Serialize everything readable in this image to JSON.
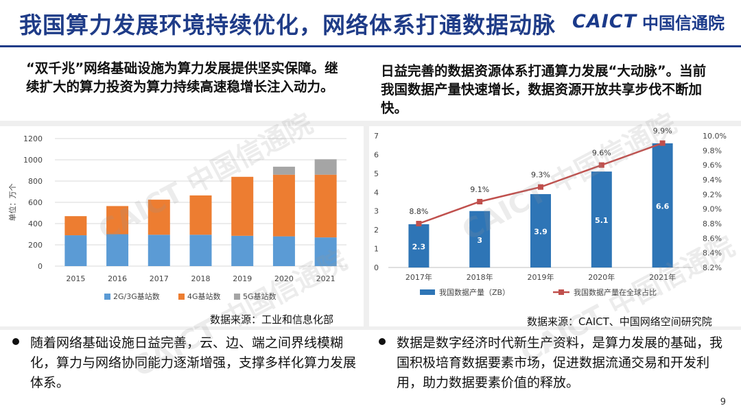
{
  "header": {
    "title": "我国算力发展环境持续优化，网络体系打通数据动脉",
    "logo_mark": "CAICT",
    "logo_text": "中国信通院"
  },
  "left": {
    "subtitle": "“双千兆”网络基础设施为算力发展提供坚实保障。继续扩大的算力投资为算力持续高速稳增长注入动力。",
    "source": "数据来源：工业和信息化部",
    "bullet": "随着网络基础设施日益完善，云、边、端之间界线模糊化，算力与网络协同能力逐渐增强，支撑多样化算力发展体系。"
  },
  "right": {
    "subtitle": "日益完善的数据资源体系打通算力发展“大动脉”。当前我国数据产量快速增长，数据资源开放共享步伐不断加快。",
    "source": "数据来源：CAICT、中国网络空间研究院",
    "bullet": "数据是数字经济时代新生产资料，是算力发展的基础，我国积极培育数据要素市场，促进数据流通交易和开发利用，助力数据要素价值的释放。"
  },
  "watermark": "CAICT 中国信通院",
  "page_number": "9",
  "chart_data": [
    {
      "type": "bar",
      "stacked": true,
      "categories": [
        "2015",
        "2016",
        "2017",
        "2018",
        "2019",
        "2020",
        "2021"
      ],
      "series": [
        {
          "name": "2G/3G基站数",
          "color": "#5b9bd5",
          "values": [
            290,
            300,
            295,
            295,
            285,
            280,
            270
          ]
        },
        {
          "name": "4G基站数",
          "color": "#ed7d31",
          "values": [
            180,
            265,
            330,
            370,
            555,
            580,
            590
          ]
        },
        {
          "name": "5G基站数",
          "color": "#a5a5a5",
          "values": [
            0,
            0,
            0,
            0,
            0,
            75,
            145
          ]
        }
      ],
      "ylabel": "单位：万个",
      "ylim": [
        0,
        1200
      ],
      "yticks": [
        "0",
        "200",
        "400",
        "600",
        "800",
        "1000",
        "1200"
      ],
      "grid": true,
      "legend": "bottom"
    },
    {
      "type": "bar+line",
      "categories": [
        "2017年",
        "2018年",
        "2019年",
        "2020年",
        "2021年"
      ],
      "bar_series": {
        "name": "我国数据产量（ZB）",
        "color": "#2e75b6",
        "values": [
          2.3,
          3,
          3.9,
          5.1,
          6.6
        ],
        "labels": [
          "2.3",
          "3",
          "3.9",
          "5.1",
          "6.6"
        ]
      },
      "line_series": {
        "name": "我国数据产量在全球占比",
        "color": "#c0504d",
        "values": [
          8.8,
          9.1,
          9.3,
          9.6,
          9.9
        ],
        "labels": [
          "8.8%",
          "9.1%",
          "9.3%",
          "9.6%",
          "9.9%"
        ]
      },
      "y_left": {
        "range": [
          0,
          7
        ],
        "ticks": [
          "0",
          "1",
          "2",
          "3",
          "4",
          "5",
          "6",
          "7"
        ]
      },
      "y_right": {
        "range": [
          8.2,
          10.0
        ],
        "ticks": [
          "8.2%",
          "8.4%",
          "8.6%",
          "8.8%",
          "9.0%",
          "9.2%",
          "9.4%",
          "9.6%",
          "9.8%",
          "10.0%"
        ]
      },
      "grid": false,
      "legend": "bottom"
    }
  ]
}
